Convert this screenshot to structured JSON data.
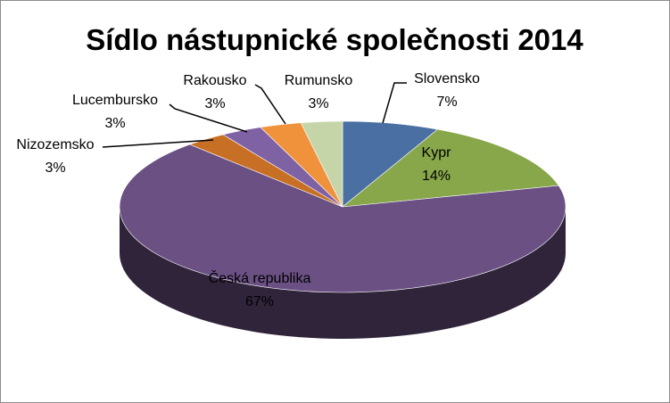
{
  "chart_data": {
    "type": "pie",
    "title": "Sídlo nástupnické společnosti 2014",
    "slices": [
      {
        "label": "Slovensko",
        "percent_label": "7%",
        "value": 7,
        "color": "#4a6fa3"
      },
      {
        "label": "Kypr",
        "percent_label": "14%",
        "value": 14,
        "color": "#88a64a"
      },
      {
        "label": "Česká republika",
        "percent_label": "67%",
        "value": 67,
        "color": "#6a5083"
      },
      {
        "label": "Nizozemsko",
        "percent_label": "3%",
        "value": 3,
        "color": "#c76f24"
      },
      {
        "label": "Lucembursko",
        "percent_label": "3%",
        "value": 3,
        "color": "#7e62a3"
      },
      {
        "label": "Rakousko",
        "percent_label": "3%",
        "value": 3,
        "color": "#f0913c"
      },
      {
        "label": "Rumunsko",
        "percent_label": "3%",
        "value": 3,
        "color": "#c6d5a8"
      }
    ],
    "legend": "none",
    "style": "3d"
  }
}
